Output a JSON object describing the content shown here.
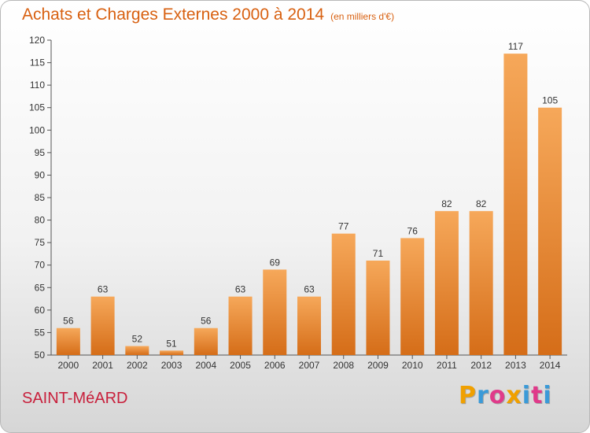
{
  "header": {
    "title": "Achats et Charges Externes 2000 à 2014",
    "unit": "(en milliers d'€)"
  },
  "footer": {
    "commune": "SAINT-MéARD",
    "logo_letters": [
      "P",
      "r",
      "o",
      "x",
      "i",
      "t",
      "i"
    ],
    "logo_colors": [
      "#f0a000",
      "#3a9ad8",
      "#e03a8a",
      "#f0a000",
      "#3a9ad8",
      "#e03a8a",
      "#3a9ad8"
    ]
  },
  "colors": {
    "bar_light": "#f6a85a",
    "bar_dark": "#d56d18",
    "text": "#333333",
    "title": "#d86010"
  },
  "chart_data": {
    "type": "bar",
    "title": "Achats et Charges Externes 2000 à 2014",
    "subtitle": "(en milliers d'€)",
    "xlabel": "",
    "ylabel": "",
    "categories": [
      "2000",
      "2001",
      "2002",
      "2003",
      "2004",
      "2005",
      "2006",
      "2007",
      "2008",
      "2009",
      "2010",
      "2011",
      "2012",
      "2013",
      "2014"
    ],
    "values": [
      56,
      63,
      52,
      51,
      56,
      63,
      69,
      63,
      77,
      71,
      76,
      82,
      82,
      117,
      105
    ],
    "ylim": [
      50,
      120
    ],
    "yticks": [
      50,
      55,
      60,
      65,
      70,
      75,
      80,
      85,
      90,
      95,
      100,
      105,
      110,
      115,
      120
    ],
    "grid": false,
    "legend": "none"
  }
}
